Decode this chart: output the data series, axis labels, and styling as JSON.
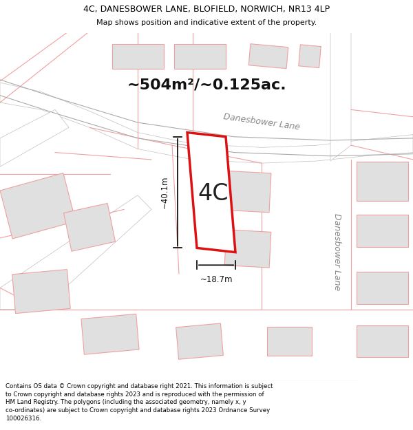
{
  "title_line1": "4C, DANESBOWER LANE, BLOFIELD, NORWICH, NR13 4LP",
  "title_line2": "Map shows position and indicative extent of the property.",
  "area_text": "~504m²/~0.125ac.",
  "label_4c": "4C",
  "dim_height": "~40.1m",
  "dim_width": "~18.7m",
  "road_label_h": "Danesbower Lane",
  "road_label_v": "Danesbower Lane",
  "footer_text": "Contains OS data © Crown copyright and database right 2021. This information is subject\nto Crown copyright and database rights 2023 and is reproduced with the permission of\nHM Land Registry. The polygons (including the associated geometry, namely x, y\nco-ordinates) are subject to Crown copyright and database rights 2023 Ordnance Survey\n100026316.",
  "map_bg": "#f5f5f5",
  "plot_outline_color": "#dd1111",
  "other_outline_color": "#f0a0a0",
  "fig_bg": "#ffffff",
  "building_fill": "#e0e0e0",
  "road_fill": "#ffffff"
}
